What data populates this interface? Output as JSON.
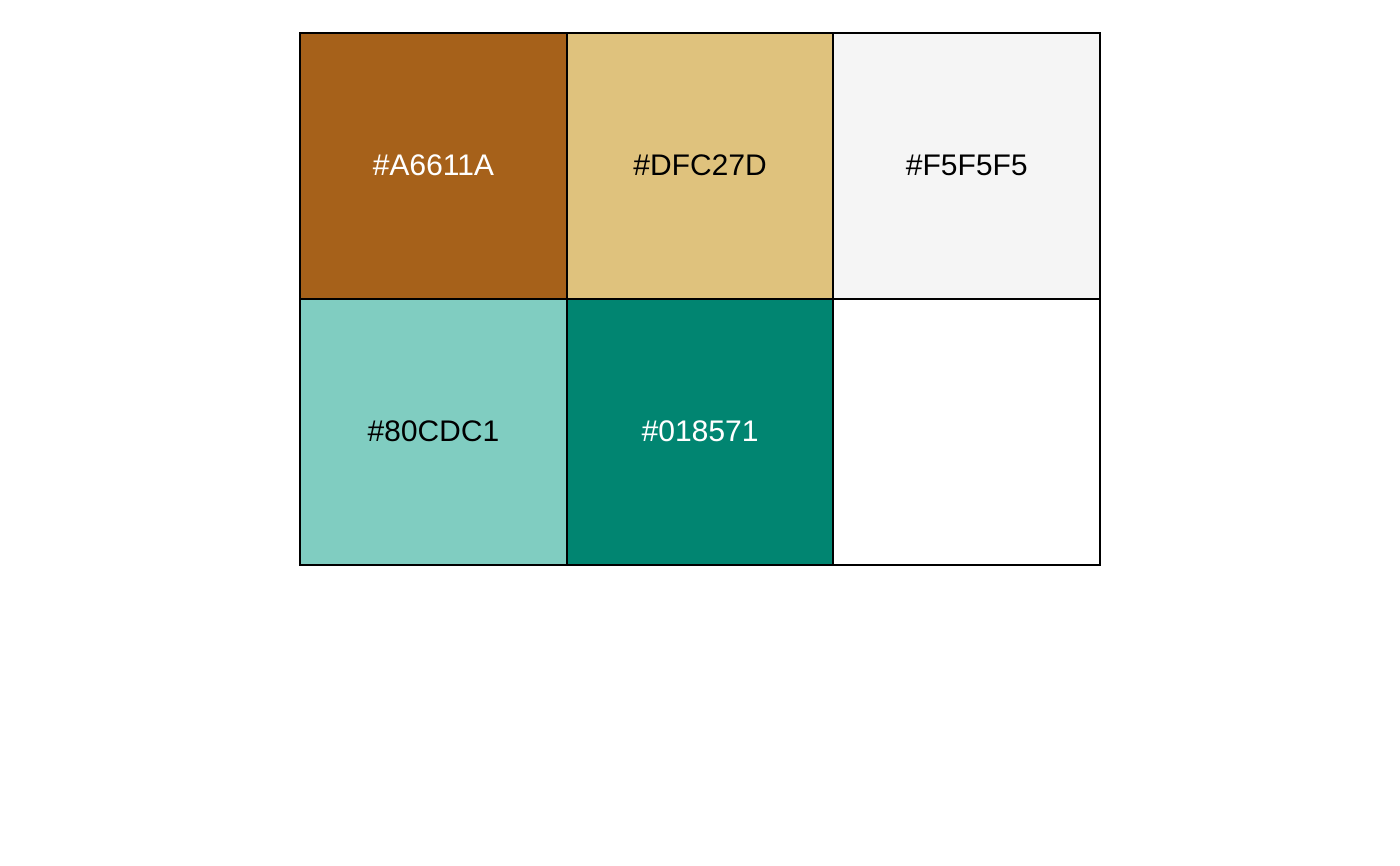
{
  "palette": {
    "swatches": [
      {
        "hex": "#A6611A",
        "label": "#A6611A",
        "text_color": "#ffffff"
      },
      {
        "hex": "#DFC27D",
        "label": "#DFC27D",
        "text_color": "#000000"
      },
      {
        "hex": "#F5F5F5",
        "label": "#F5F5F5",
        "text_color": "#000000"
      },
      {
        "hex": "#80CDC1",
        "label": "#80CDC1",
        "text_color": "#000000"
      },
      {
        "hex": "#018571",
        "label": "#018571",
        "text_color": "#ffffff"
      },
      {
        "hex": "#FFFFFF",
        "label": "",
        "text_color": "#000000"
      }
    ]
  }
}
